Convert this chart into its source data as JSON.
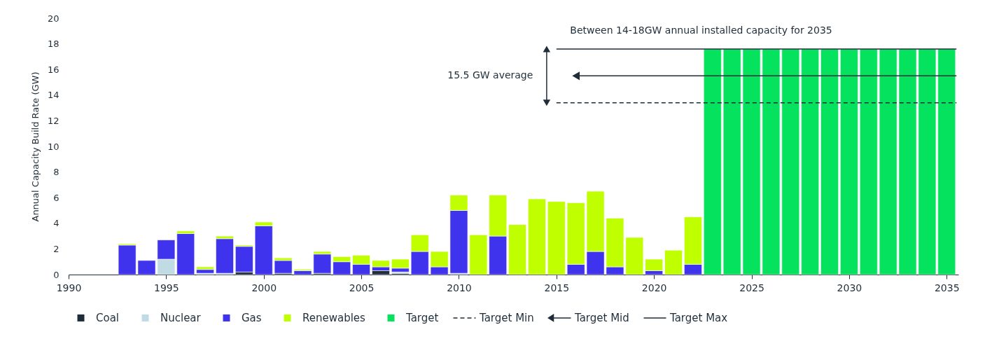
{
  "chart_data": {
    "type": "bar",
    "stacked": true,
    "ylabel": "Annual Capacity Build Rate (GW)",
    "x": [
      1993,
      1994,
      1995,
      1996,
      1997,
      1998,
      1999,
      2000,
      2001,
      2002,
      2003,
      2004,
      2005,
      2006,
      2007,
      2008,
      2009,
      2010,
      2011,
      2012,
      2013,
      2014,
      2015,
      2016,
      2017,
      2018,
      2019,
      2020,
      2021,
      2022,
      2023,
      2024,
      2025,
      2026,
      2027,
      2028,
      2029,
      2030,
      2031,
      2032,
      2033,
      2034,
      2035
    ],
    "series": [
      {
        "name": "Coal",
        "color": "#1f2d3a",
        "values": [
          null,
          null,
          null,
          null,
          null,
          null,
          0.2,
          null,
          0.1,
          null,
          0.1,
          null,
          null,
          0.3,
          0.1,
          null,
          null,
          null,
          null,
          null,
          null,
          null,
          null,
          null,
          null,
          null,
          null,
          null,
          null,
          null,
          null,
          null,
          null,
          null,
          null,
          null,
          null,
          null,
          null,
          null,
          null,
          null,
          null
        ]
      },
      {
        "name": "Nuclear",
        "color": "#c0dbe3",
        "values": [
          null,
          null,
          1.2,
          null,
          0.1,
          0.1,
          null,
          null,
          null,
          null,
          null,
          null,
          null,
          null,
          0.1,
          null,
          null,
          0.1,
          null,
          null,
          null,
          null,
          null,
          null,
          null,
          null,
          null,
          null,
          null,
          null,
          null,
          null,
          null,
          null,
          null,
          null,
          null,
          null,
          null,
          null,
          null,
          null,
          null
        ]
      },
      {
        "name": "Gas",
        "color": "#4033ee",
        "values": [
          2.3,
          1.1,
          1.5,
          3.2,
          0.3,
          2.7,
          2.0,
          3.8,
          1.0,
          0.3,
          1.5,
          1.0,
          0.8,
          0.3,
          0.3,
          1.8,
          0.6,
          4.9,
          null,
          3.0,
          null,
          null,
          null,
          0.8,
          1.8,
          0.6,
          null,
          0.3,
          null,
          0.8,
          null,
          null,
          null,
          null,
          null,
          null,
          null,
          null,
          null,
          null,
          null,
          null,
          null
        ]
      },
      {
        "name": "Renewables",
        "color": "#bfff00",
        "values": [
          0.1,
          null,
          null,
          0.2,
          0.2,
          0.2,
          0.1,
          0.3,
          0.2,
          0.1,
          0.2,
          0.4,
          0.7,
          0.5,
          0.7,
          1.3,
          1.2,
          1.2,
          3.1,
          3.2,
          3.9,
          5.9,
          5.7,
          4.8,
          4.7,
          3.8,
          2.9,
          0.9,
          1.9,
          3.7,
          null,
          null,
          null,
          null,
          null,
          null,
          null,
          null,
          null,
          null,
          null,
          null,
          null
        ]
      },
      {
        "name": "Target",
        "color": "#05e35e",
        "values": [
          null,
          null,
          null,
          null,
          null,
          null,
          null,
          null,
          null,
          null,
          null,
          null,
          null,
          null,
          null,
          null,
          null,
          null,
          null,
          null,
          null,
          null,
          null,
          null,
          null,
          null,
          null,
          null,
          null,
          null,
          17.6,
          17.6,
          17.6,
          17.6,
          17.6,
          17.6,
          17.6,
          17.6,
          17.6,
          17.6,
          17.6,
          17.6,
          17.6
        ]
      },
      {
        "name": "Target Min",
        "type": "line",
        "color": "#1f2d3a",
        "line_style": "dashed",
        "x": [
          2015,
          2035.5
        ],
        "values": [
          13.4,
          13.4
        ]
      },
      {
        "name": "Target Mid",
        "type": "line",
        "color": "#1f2d3a",
        "line_style": "solid",
        "marker": "triangle",
        "x": [
          2016,
          2035.5
        ],
        "values": [
          15.5,
          15.5
        ]
      },
      {
        "name": "Target Max",
        "type": "line",
        "color": "#1f2d3a",
        "line_style": "solid",
        "x": [
          2015,
          2035.5
        ],
        "values": [
          17.6,
          17.6
        ]
      }
    ],
    "xlim": [
      1990,
      2035.6
    ],
    "xticks": [
      1990,
      1995,
      2000,
      2005,
      2010,
      2015,
      2020,
      2025,
      2030,
      2035
    ],
    "ylim": [
      0,
      20
    ],
    "yticks": [
      0,
      2,
      4,
      6,
      8,
      10,
      12,
      14,
      16,
      18,
      20
    ],
    "grid": false,
    "legend": "bottom",
    "annotations": [
      "Between 14-18GW annual installed capacity for 2035",
      "15.5 GW average"
    ]
  }
}
